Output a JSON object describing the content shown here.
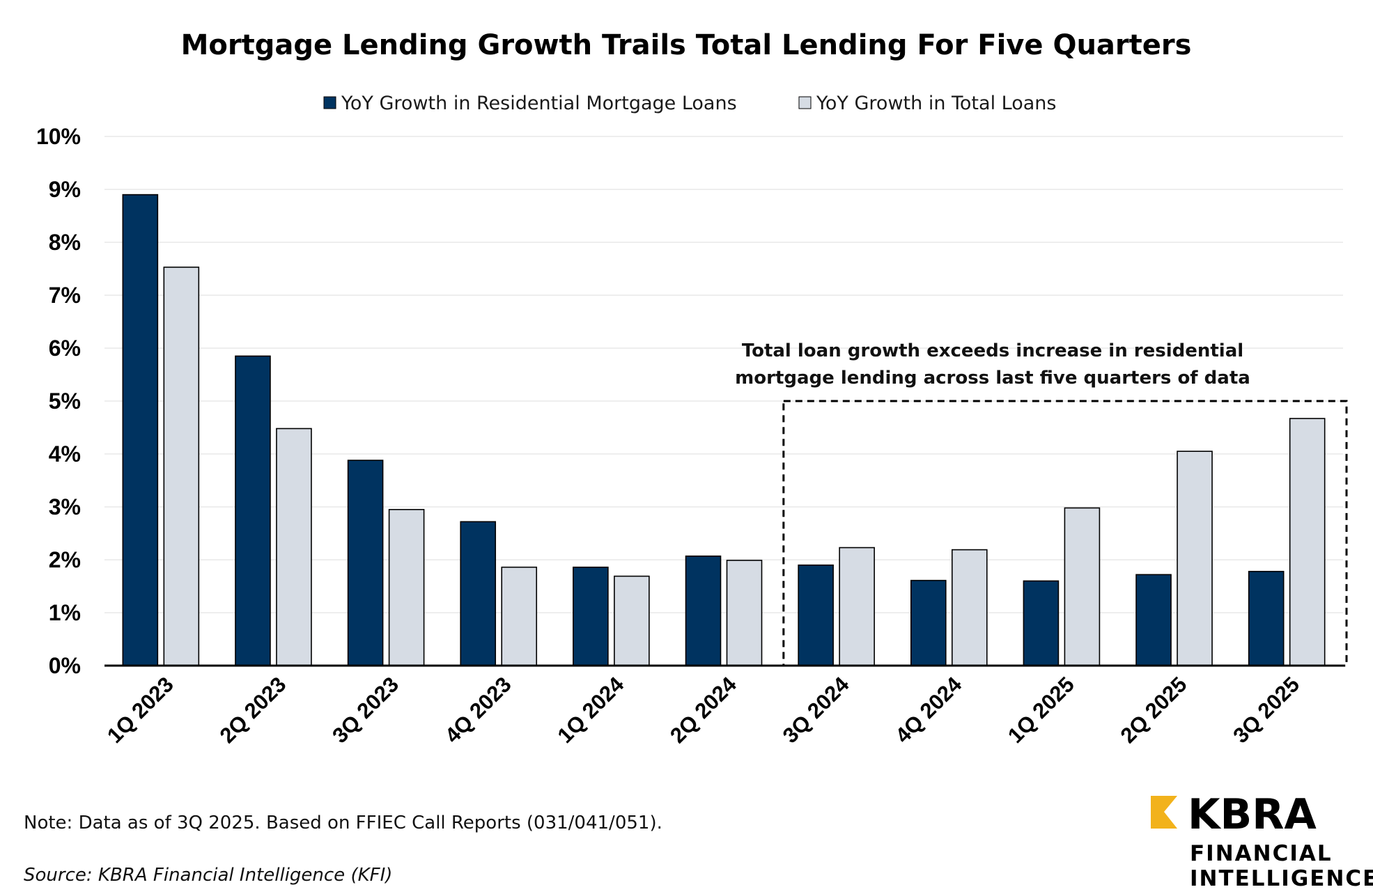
{
  "chart_data": {
    "type": "bar",
    "title": "Mortgage Lending Growth Trails Total Lending For Five Quarters",
    "categories": [
      "1Q 2023",
      "2Q 2023",
      "3Q 2023",
      "4Q 2023",
      "1Q 2024",
      "2Q 2024",
      "3Q 2024",
      "4Q 2024",
      "1Q 2025",
      "2Q 2025",
      "3Q 2025"
    ],
    "series": [
      {
        "name": "YoY Growth in Residential Mortgage Loans",
        "color": "#003360",
        "values": [
          8.9,
          5.85,
          3.88,
          2.72,
          1.86,
          2.07,
          1.9,
          1.61,
          1.6,
          1.72,
          1.78
        ]
      },
      {
        "name": "YoY Growth in Total Loans",
        "color": "#d6dce4",
        "values": [
          7.53,
          4.48,
          2.95,
          1.86,
          1.69,
          1.99,
          2.23,
          2.19,
          2.98,
          4.05,
          4.67
        ]
      }
    ],
    "ylim": [
      0,
      10
    ],
    "yticks": [
      "0%",
      "1%",
      "2%",
      "3%",
      "4%",
      "5%",
      "6%",
      "7%",
      "8%",
      "9%",
      "10%"
    ],
    "xlabel": "",
    "ylabel": "",
    "legend_position": "top-center",
    "grid": true,
    "annotation": {
      "lines": [
        "Total loan growth exceeds increase in residential",
        "mortgage lending across last five quarters of data"
      ],
      "highlight_categories": [
        "3Q 2024",
        "4Q 2024",
        "1Q 2025",
        "2Q 2025",
        "3Q 2025"
      ]
    }
  },
  "footer": {
    "note": "Note: Data as of 3Q 2025. Based on FFIEC Call Reports (031/041/051).",
    "source": "Source: KBRA Financial Intelligence (KFI)"
  },
  "brand": {
    "name": "KBRA",
    "line1": "FINANCIAL",
    "line2": "INTELLIGENCE",
    "accent_color": "#f2b21b"
  }
}
